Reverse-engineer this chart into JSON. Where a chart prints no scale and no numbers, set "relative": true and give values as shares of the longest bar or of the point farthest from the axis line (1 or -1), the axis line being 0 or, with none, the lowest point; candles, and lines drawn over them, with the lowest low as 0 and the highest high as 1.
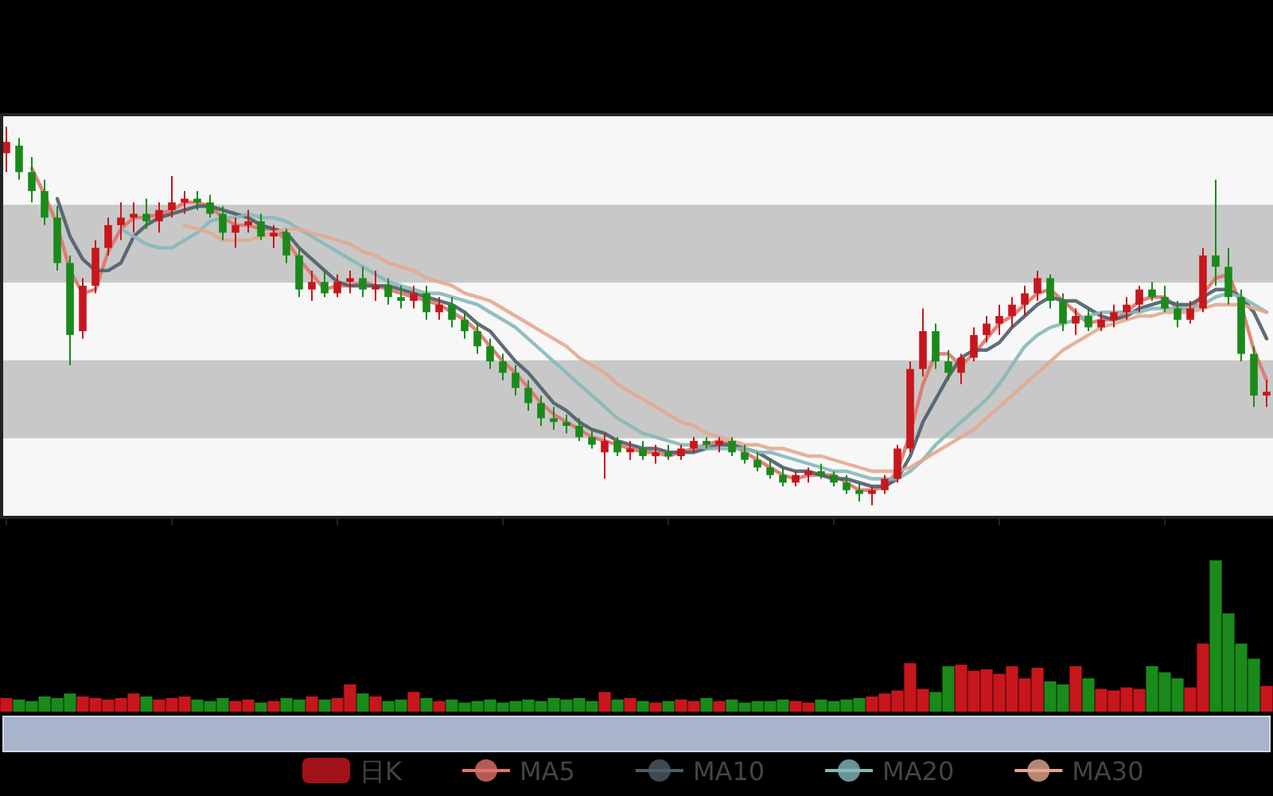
{
  "chart_data": [
    {
      "type": "candlestick",
      "relative": true,
      "legend": "bottom",
      "categories": [
        null,
        null,
        null,
        null,
        null,
        null,
        null,
        null,
        null,
        null,
        null,
        null,
        null,
        null,
        null,
        null,
        null,
        null,
        null,
        null,
        null,
        null,
        null,
        null,
        null,
        null,
        null,
        null,
        null,
        null,
        null,
        null,
        null,
        null,
        null,
        null,
        null,
        null,
        null,
        null,
        null,
        null,
        null,
        null,
        null,
        null,
        null,
        null,
        null,
        null,
        null,
        null,
        null,
        null,
        null,
        null,
        null,
        null,
        null,
        null,
        null,
        null,
        null,
        null,
        null,
        null,
        null,
        null,
        null,
        null,
        null,
        null,
        null,
        null,
        null,
        null,
        null,
        null,
        null,
        null,
        null,
        null,
        null,
        null,
        null,
        null,
        null,
        null,
        null,
        null,
        null,
        null,
        null,
        null,
        null,
        null,
        null,
        null,
        null,
        null
      ],
      "bands": [
        {
          "axis": "y",
          "from": 0.588,
          "to": 0.794,
          "color": "#c8c8c8"
        },
        {
          "axis": "y",
          "from": 0.177,
          "to": 0.383,
          "color": "#c8c8c8"
        }
      ],
      "series": [
        {
          "name": "日K",
          "type": "candlestick",
          "color": "#c8161d",
          "ohlc": [
            [
              0.93,
              1.0,
              0.88,
              0.96
            ],
            [
              0.95,
              0.97,
              0.86,
              0.88
            ],
            [
              0.88,
              0.92,
              0.8,
              0.83
            ],
            [
              0.83,
              0.86,
              0.74,
              0.76
            ],
            [
              0.76,
              0.79,
              0.62,
              0.64
            ],
            [
              0.64,
              0.66,
              0.37,
              0.45
            ],
            [
              0.46,
              0.6,
              0.44,
              0.58
            ],
            [
              0.58,
              0.7,
              0.56,
              0.68
            ],
            [
              0.68,
              0.76,
              0.66,
              0.74
            ],
            [
              0.74,
              0.8,
              0.7,
              0.76
            ],
            [
              0.76,
              0.8,
              0.72,
              0.77
            ],
            [
              0.77,
              0.81,
              0.73,
              0.75
            ],
            [
              0.75,
              0.8,
              0.72,
              0.78
            ],
            [
              0.78,
              0.87,
              0.76,
              0.8
            ],
            [
              0.8,
              0.83,
              0.77,
              0.81
            ],
            [
              0.81,
              0.83,
              0.78,
              0.8
            ],
            [
              0.8,
              0.82,
              0.76,
              0.77
            ],
            [
              0.77,
              0.79,
              0.7,
              0.72
            ],
            [
              0.72,
              0.76,
              0.68,
              0.74
            ],
            [
              0.74,
              0.78,
              0.72,
              0.75
            ],
            [
              0.75,
              0.77,
              0.7,
              0.71
            ],
            [
              0.71,
              0.74,
              0.68,
              0.72
            ],
            [
              0.72,
              0.73,
              0.64,
              0.66
            ],
            [
              0.66,
              0.68,
              0.55,
              0.57
            ],
            [
              0.57,
              0.62,
              0.54,
              0.59
            ],
            [
              0.59,
              0.62,
              0.55,
              0.56
            ],
            [
              0.56,
              0.61,
              0.55,
              0.59
            ],
            [
              0.59,
              0.62,
              0.56,
              0.6
            ],
            [
              0.6,
              0.63,
              0.55,
              0.57
            ],
            [
              0.57,
              0.62,
              0.54,
              0.58
            ],
            [
              0.58,
              0.6,
              0.53,
              0.55
            ],
            [
              0.55,
              0.58,
              0.52,
              0.54
            ],
            [
              0.54,
              0.58,
              0.52,
              0.56
            ],
            [
              0.56,
              0.58,
              0.49,
              0.51
            ],
            [
              0.51,
              0.55,
              0.49,
              0.53
            ],
            [
              0.53,
              0.55,
              0.47,
              0.49
            ],
            [
              0.49,
              0.51,
              0.44,
              0.46
            ],
            [
              0.46,
              0.48,
              0.4,
              0.42
            ],
            [
              0.42,
              0.44,
              0.36,
              0.38
            ],
            [
              0.38,
              0.4,
              0.33,
              0.35
            ],
            [
              0.35,
              0.37,
              0.29,
              0.31
            ],
            [
              0.31,
              0.33,
              0.25,
              0.27
            ],
            [
              0.27,
              0.29,
              0.21,
              0.23
            ],
            [
              0.23,
              0.26,
              0.2,
              0.22
            ],
            [
              0.22,
              0.24,
              0.19,
              0.21
            ],
            [
              0.21,
              0.23,
              0.17,
              0.18
            ],
            [
              0.18,
              0.2,
              0.15,
              0.16
            ],
            [
              0.14,
              0.19,
              0.07,
              0.17
            ],
            [
              0.17,
              0.18,
              0.13,
              0.14
            ],
            [
              0.14,
              0.17,
              0.12,
              0.15
            ],
            [
              0.15,
              0.17,
              0.12,
              0.13
            ],
            [
              0.13,
              0.16,
              0.11,
              0.14
            ],
            [
              0.14,
              0.16,
              0.12,
              0.13
            ],
            [
              0.13,
              0.16,
              0.12,
              0.15
            ],
            [
              0.15,
              0.18,
              0.14,
              0.17
            ],
            [
              0.17,
              0.18,
              0.15,
              0.16
            ],
            [
              0.16,
              0.18,
              0.14,
              0.17
            ],
            [
              0.17,
              0.18,
              0.13,
              0.14
            ],
            [
              0.14,
              0.16,
              0.11,
              0.12
            ],
            [
              0.12,
              0.14,
              0.09,
              0.1
            ],
            [
              0.1,
              0.12,
              0.07,
              0.08
            ],
            [
              0.08,
              0.1,
              0.05,
              0.06
            ],
            [
              0.06,
              0.09,
              0.05,
              0.08
            ],
            [
              0.08,
              0.1,
              0.06,
              0.09
            ],
            [
              0.09,
              0.11,
              0.07,
              0.08
            ],
            [
              0.08,
              0.09,
              0.05,
              0.06
            ],
            [
              0.06,
              0.08,
              0.03,
              0.04
            ],
            [
              0.04,
              0.06,
              0.01,
              0.03
            ],
            [
              0.03,
              0.05,
              0.0,
              0.04
            ],
            [
              0.04,
              0.08,
              0.03,
              0.07
            ],
            [
              0.07,
              0.16,
              0.06,
              0.15
            ],
            [
              0.15,
              0.38,
              0.14,
              0.36
            ],
            [
              0.36,
              0.52,
              0.34,
              0.46
            ],
            [
              0.46,
              0.48,
              0.36,
              0.38
            ],
            [
              0.38,
              0.41,
              0.33,
              0.35
            ],
            [
              0.35,
              0.4,
              0.32,
              0.39
            ],
            [
              0.39,
              0.47,
              0.38,
              0.45
            ],
            [
              0.45,
              0.5,
              0.43,
              0.48
            ],
            [
              0.48,
              0.53,
              0.45,
              0.5
            ],
            [
              0.5,
              0.55,
              0.47,
              0.53
            ],
            [
              0.53,
              0.58,
              0.5,
              0.56
            ],
            [
              0.56,
              0.62,
              0.54,
              0.6
            ],
            [
              0.6,
              0.61,
              0.52,
              0.54
            ],
            [
              0.54,
              0.56,
              0.46,
              0.48
            ],
            [
              0.48,
              0.52,
              0.45,
              0.5
            ],
            [
              0.5,
              0.52,
              0.46,
              0.47
            ],
            [
              0.47,
              0.51,
              0.46,
              0.49
            ],
            [
              0.49,
              0.53,
              0.47,
              0.51
            ],
            [
              0.51,
              0.55,
              0.49,
              0.53
            ],
            [
              0.53,
              0.58,
              0.51,
              0.57
            ],
            [
              0.57,
              0.59,
              0.54,
              0.55
            ],
            [
              0.55,
              0.58,
              0.51,
              0.52
            ],
            [
              0.52,
              0.54,
              0.47,
              0.49
            ],
            [
              0.49,
              0.54,
              0.48,
              0.52
            ],
            [
              0.52,
              0.68,
              0.51,
              0.66
            ],
            [
              0.66,
              0.86,
              0.58,
              0.63
            ],
            [
              0.63,
              0.68,
              0.53,
              0.55
            ],
            [
              0.55,
              0.57,
              0.38,
              0.4
            ],
            [
              0.4,
              0.42,
              0.26,
              0.29
            ],
            [
              0.29,
              0.33,
              0.26,
              0.3
            ]
          ],
          "colors": [
            "#c8161d",
            "#1a8a1a",
            "#1a8a1a",
            "#1a8a1a",
            "#1a8a1a",
            "#1a8a1a",
            "#c8161d",
            "#c8161d",
            "#c8161d",
            "#c8161d",
            "#c8161d",
            "#1a8a1a",
            "#c8161d",
            "#c8161d",
            "#c8161d",
            "#1a8a1a",
            "#1a8a1a",
            "#1a8a1a",
            "#c8161d",
            "#c8161d",
            "#1a8a1a",
            "#c8161d",
            "#1a8a1a",
            "#1a8a1a",
            "#c8161d",
            "#1a8a1a",
            "#c8161d",
            "#c8161d",
            "#1a8a1a",
            "#c8161d",
            "#1a8a1a",
            "#1a8a1a",
            "#c8161d",
            "#1a8a1a",
            "#c8161d",
            "#1a8a1a",
            "#1a8a1a",
            "#1a8a1a",
            "#1a8a1a",
            "#1a8a1a",
            "#1a8a1a",
            "#1a8a1a",
            "#1a8a1a",
            "#1a8a1a",
            "#1a8a1a",
            "#1a8a1a",
            "#1a8a1a",
            "#c8161d",
            "#1a8a1a",
            "#c8161d",
            "#1a8a1a",
            "#c8161d",
            "#1a8a1a",
            "#c8161d",
            "#c8161d",
            "#1a8a1a",
            "#c8161d",
            "#1a8a1a",
            "#1a8a1a",
            "#1a8a1a",
            "#1a8a1a",
            "#1a8a1a",
            "#c8161d",
            "#c8161d",
            "#1a8a1a",
            "#1a8a1a",
            "#1a8a1a",
            "#1a8a1a",
            "#c8161d",
            "#c8161d",
            "#c8161d",
            "#c8161d",
            "#c8161d",
            "#1a8a1a",
            "#1a8a1a",
            "#c8161d",
            "#c8161d",
            "#c8161d",
            "#c8161d",
            "#c8161d",
            "#c8161d",
            "#c8161d",
            "#1a8a1a",
            "#1a8a1a",
            "#c8161d",
            "#1a8a1a",
            "#c8161d",
            "#c8161d",
            "#c8161d",
            "#c8161d",
            "#1a8a1a",
            "#1a8a1a",
            "#1a8a1a",
            "#c8161d",
            "#c8161d",
            "#1a8a1a",
            "#1a8a1a",
            "#1a8a1a",
            "#1a8a1a",
            "#c8161d"
          ]
        },
        {
          "name": "MA5",
          "type": "line",
          "color": "#e0736a",
          "values": [
            null,
            null,
            0.89,
            0.82,
            0.74,
            0.62,
            0.56,
            0.57,
            0.67,
            0.73,
            0.76,
            0.76,
            0.77,
            0.78,
            0.8,
            0.8,
            0.79,
            0.76,
            0.74,
            0.74,
            0.73,
            0.73,
            0.7,
            0.65,
            0.61,
            0.57,
            0.58,
            0.58,
            0.59,
            0.58,
            0.57,
            0.56,
            0.55,
            0.54,
            0.53,
            0.51,
            0.49,
            0.46,
            0.42,
            0.38,
            0.35,
            0.31,
            0.27,
            0.24,
            0.22,
            0.2,
            0.18,
            0.17,
            0.16,
            0.15,
            0.14,
            0.14,
            0.13,
            0.14,
            0.15,
            0.16,
            0.17,
            0.16,
            0.14,
            0.12,
            0.1,
            0.08,
            0.07,
            0.08,
            0.08,
            0.08,
            0.06,
            0.04,
            0.04,
            0.05,
            0.09,
            0.19,
            0.32,
            0.4,
            0.4,
            0.37,
            0.4,
            0.44,
            0.48,
            0.5,
            0.53,
            0.56,
            0.57,
            0.54,
            0.51,
            0.48,
            0.49,
            0.49,
            0.51,
            0.54,
            0.55,
            0.55,
            0.52,
            0.51,
            0.56,
            0.6,
            0.61,
            0.53,
            0.41,
            0.33
          ]
        },
        {
          "name": "MA10",
          "type": "line",
          "color": "#4d5d68",
          "values": [
            null,
            null,
            null,
            null,
            0.81,
            0.71,
            0.65,
            0.62,
            0.62,
            0.64,
            0.71,
            0.74,
            0.76,
            0.77,
            0.78,
            0.79,
            0.79,
            0.78,
            0.77,
            0.76,
            0.74,
            0.73,
            0.72,
            0.68,
            0.65,
            0.62,
            0.59,
            0.58,
            0.58,
            0.58,
            0.58,
            0.57,
            0.56,
            0.55,
            0.54,
            0.53,
            0.51,
            0.48,
            0.46,
            0.42,
            0.38,
            0.35,
            0.31,
            0.27,
            0.25,
            0.22,
            0.2,
            0.19,
            0.17,
            0.16,
            0.15,
            0.15,
            0.14,
            0.14,
            0.14,
            0.15,
            0.16,
            0.16,
            0.15,
            0.14,
            0.12,
            0.1,
            0.09,
            0.09,
            0.08,
            0.07,
            0.07,
            0.06,
            0.05,
            0.05,
            0.07,
            0.13,
            0.22,
            0.28,
            0.34,
            0.39,
            0.41,
            0.41,
            0.43,
            0.47,
            0.5,
            0.53,
            0.55,
            0.54,
            0.54,
            0.52,
            0.5,
            0.49,
            0.5,
            0.52,
            0.53,
            0.54,
            0.53,
            0.53,
            0.55,
            0.57,
            0.57,
            0.55,
            0.51,
            0.44
          ]
        },
        {
          "name": "MA20",
          "type": "line",
          "color": "#86b8b8",
          "values": [
            null,
            null,
            null,
            null,
            null,
            null,
            null,
            null,
            null,
            0.73,
            0.71,
            0.69,
            0.68,
            0.68,
            0.7,
            0.72,
            0.75,
            0.76,
            0.76,
            0.77,
            0.76,
            0.76,
            0.75,
            0.73,
            0.71,
            0.69,
            0.67,
            0.65,
            0.63,
            0.61,
            0.59,
            0.58,
            0.57,
            0.56,
            0.56,
            0.55,
            0.54,
            0.53,
            0.51,
            0.49,
            0.47,
            0.44,
            0.41,
            0.38,
            0.35,
            0.32,
            0.29,
            0.26,
            0.23,
            0.21,
            0.19,
            0.18,
            0.17,
            0.16,
            0.16,
            0.15,
            0.15,
            0.15,
            0.15,
            0.14,
            0.14,
            0.13,
            0.12,
            0.11,
            0.1,
            0.09,
            0.09,
            0.08,
            0.07,
            0.07,
            0.07,
            0.09,
            0.12,
            0.16,
            0.19,
            0.22,
            0.25,
            0.28,
            0.32,
            0.37,
            0.42,
            0.45,
            0.47,
            0.48,
            0.49,
            0.5,
            0.51,
            0.51,
            0.51,
            0.51,
            0.52,
            0.52,
            0.52,
            0.52,
            0.53,
            0.55,
            0.56,
            0.55,
            0.53,
            0.51
          ]
        },
        {
          "name": "MA30",
          "type": "line",
          "color": "#e3a88f",
          "values": [
            null,
            null,
            null,
            null,
            null,
            null,
            null,
            null,
            null,
            null,
            null,
            null,
            null,
            null,
            0.74,
            0.73,
            0.72,
            0.7,
            0.7,
            0.7,
            0.71,
            0.72,
            0.73,
            0.73,
            0.72,
            0.71,
            0.7,
            0.69,
            0.67,
            0.66,
            0.64,
            0.63,
            0.62,
            0.6,
            0.59,
            0.58,
            0.56,
            0.55,
            0.54,
            0.52,
            0.5,
            0.48,
            0.46,
            0.44,
            0.42,
            0.39,
            0.37,
            0.35,
            0.32,
            0.3,
            0.28,
            0.26,
            0.24,
            0.22,
            0.21,
            0.19,
            0.18,
            0.17,
            0.16,
            0.16,
            0.15,
            0.15,
            0.14,
            0.13,
            0.13,
            0.12,
            0.11,
            0.1,
            0.09,
            0.09,
            0.09,
            0.1,
            0.12,
            0.14,
            0.16,
            0.18,
            0.2,
            0.23,
            0.26,
            0.29,
            0.32,
            0.35,
            0.38,
            0.41,
            0.43,
            0.45,
            0.47,
            0.48,
            0.49,
            0.5,
            0.5,
            0.51,
            0.51,
            0.51,
            0.52,
            0.53,
            0.53,
            0.53,
            0.52,
            0.51
          ]
        }
      ]
    },
    {
      "type": "bar",
      "relative": true,
      "categories": [
        null,
        null,
        null,
        null,
        null,
        null,
        null,
        null,
        null,
        null,
        null,
        null,
        null,
        null,
        null,
        null,
        null,
        null,
        null,
        null,
        null,
        null,
        null,
        null,
        null,
        null,
        null,
        null,
        null,
        null,
        null,
        null,
        null,
        null,
        null,
        null,
        null,
        null,
        null,
        null,
        null,
        null,
        null,
        null,
        null,
        null,
        null,
        null,
        null,
        null,
        null,
        null,
        null,
        null,
        null,
        null,
        null,
        null,
        null,
        null,
        null,
        null,
        null,
        null,
        null,
        null,
        null,
        null,
        null,
        null,
        null,
        null,
        null,
        null,
        null,
        null,
        null,
        null,
        null,
        null,
        null,
        null,
        null,
        null,
        null,
        null,
        null,
        null,
        null,
        null,
        null,
        null,
        null,
        null,
        null,
        null,
        null,
        null,
        null,
        null
      ],
      "values": [
        0.09,
        0.08,
        0.07,
        0.1,
        0.09,
        0.12,
        0.1,
        0.09,
        0.08,
        0.09,
        0.12,
        0.1,
        0.08,
        0.09,
        0.1,
        0.08,
        0.07,
        0.09,
        0.07,
        0.08,
        0.06,
        0.07,
        0.09,
        0.08,
        0.1,
        0.08,
        0.09,
        0.18,
        0.12,
        0.1,
        0.07,
        0.08,
        0.13,
        0.09,
        0.07,
        0.08,
        0.06,
        0.07,
        0.08,
        0.06,
        0.07,
        0.08,
        0.07,
        0.09,
        0.08,
        0.09,
        0.07,
        0.13,
        0.08,
        0.09,
        0.07,
        0.06,
        0.07,
        0.08,
        0.07,
        0.09,
        0.07,
        0.08,
        0.06,
        0.07,
        0.07,
        0.08,
        0.07,
        0.06,
        0.08,
        0.07,
        0.08,
        0.09,
        0.1,
        0.12,
        0.14,
        0.32,
        0.15,
        0.13,
        0.3,
        0.31,
        0.27,
        0.28,
        0.25,
        0.3,
        0.22,
        0.29,
        0.2,
        0.18,
        0.3,
        0.22,
        0.15,
        0.14,
        0.16,
        0.15,
        0.3,
        0.26,
        0.22,
        0.16,
        0.45,
        1.0,
        0.65,
        0.45,
        0.35,
        0.17
      ],
      "colors": [
        "#c8161d",
        "#1a8a1a",
        "#1a8a1a",
        "#1a8a1a",
        "#1a8a1a",
        "#1a8a1a",
        "#c8161d",
        "#c8161d",
        "#c8161d",
        "#c8161d",
        "#c8161d",
        "#1a8a1a",
        "#c8161d",
        "#c8161d",
        "#c8161d",
        "#1a8a1a",
        "#1a8a1a",
        "#1a8a1a",
        "#c8161d",
        "#c8161d",
        "#1a8a1a",
        "#c8161d",
        "#1a8a1a",
        "#1a8a1a",
        "#c8161d",
        "#1a8a1a",
        "#c8161d",
        "#c8161d",
        "#1a8a1a",
        "#c8161d",
        "#1a8a1a",
        "#1a8a1a",
        "#c8161d",
        "#1a8a1a",
        "#c8161d",
        "#1a8a1a",
        "#1a8a1a",
        "#1a8a1a",
        "#1a8a1a",
        "#1a8a1a",
        "#1a8a1a",
        "#1a8a1a",
        "#1a8a1a",
        "#1a8a1a",
        "#1a8a1a",
        "#1a8a1a",
        "#1a8a1a",
        "#c8161d",
        "#1a8a1a",
        "#c8161d",
        "#1a8a1a",
        "#c8161d",
        "#1a8a1a",
        "#c8161d",
        "#c8161d",
        "#1a8a1a",
        "#c8161d",
        "#1a8a1a",
        "#1a8a1a",
        "#1a8a1a",
        "#1a8a1a",
        "#1a8a1a",
        "#c8161d",
        "#c8161d",
        "#1a8a1a",
        "#1a8a1a",
        "#1a8a1a",
        "#1a8a1a",
        "#c8161d",
        "#c8161d",
        "#c8161d",
        "#c8161d",
        "#c8161d",
        "#1a8a1a",
        "#1a8a1a",
        "#c8161d",
        "#c8161d",
        "#c8161d",
        "#c8161d",
        "#c8161d",
        "#c8161d",
        "#c8161d",
        "#1a8a1a",
        "#1a8a1a",
        "#c8161d",
        "#1a8a1a",
        "#c8161d",
        "#c8161d",
        "#c8161d",
        "#c8161d",
        "#1a8a1a",
        "#1a8a1a",
        "#1a8a1a",
        "#c8161d",
        "#c8161d",
        "#1a8a1a",
        "#1a8a1a",
        "#1a8a1a",
        "#1a8a1a",
        "#c8161d"
      ]
    }
  ]
}
